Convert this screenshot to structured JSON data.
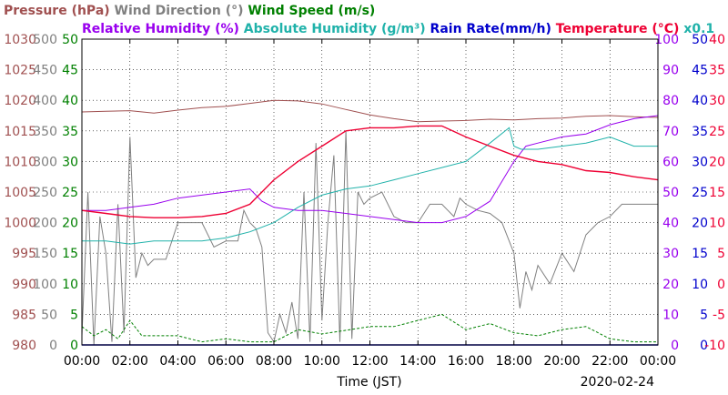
{
  "chart_data": {
    "type": "line",
    "date_label": "2020-02-24",
    "xlabel": "Time (JST)",
    "x_ticks": [
      "00:00",
      "02:00",
      "04:00",
      "06:00",
      "08:00",
      "10:00",
      "12:00",
      "14:00",
      "16:00",
      "18:00",
      "20:00",
      "22:00",
      "00:00"
    ],
    "x_range_hours": [
      0,
      24
    ],
    "grid": true,
    "legend_row1": [
      {
        "text": "Pressure (hPa)",
        "color": "#A05050"
      },
      {
        "text": "Wind Direction (°)",
        "color": "#808080"
      },
      {
        "text": "Wind Speed (m/s)",
        "color": "#008000"
      }
    ],
    "legend_row2": [
      {
        "text": "Relative Humidity (%)",
        "color": "#9900EE"
      },
      {
        "text": "Absolute Humidity (g/m³)",
        "color": "#20B2AA"
      },
      {
        "text": "Rain Rate(mm/h)",
        "color": "#0000CC"
      },
      {
        "text": "Temperature (°C)",
        "color": "#EE0033"
      },
      {
        "text": "x0.1",
        "color": "#20B2AA"
      }
    ],
    "axes": {
      "pressure": {
        "color": "#A05050",
        "min": 980,
        "max": 1030,
        "ticks": [
          980,
          985,
          990,
          995,
          1000,
          1005,
          1010,
          1015,
          1020,
          1025,
          1030
        ]
      },
      "wind_direction": {
        "color": "#808080",
        "min": 0,
        "max": 500,
        "ticks": [
          0,
          50,
          100,
          150,
          200,
          250,
          300,
          350,
          400,
          450,
          500
        ]
      },
      "wind_speed": {
        "color": "#008000",
        "min": 0,
        "max": 50,
        "ticks": [
          0,
          5,
          10,
          15,
          20,
          25,
          30,
          35,
          40,
          45,
          50
        ]
      },
      "humidity": {
        "color": "#9900EE",
        "min": 0,
        "max": 100,
        "ticks": [
          0,
          10,
          20,
          30,
          40,
          50,
          60,
          70,
          80,
          90,
          100
        ]
      },
      "rain_rate": {
        "color": "#0000CC",
        "min": 0,
        "max": 50,
        "ticks": [
          0,
          5,
          10,
          15,
          20,
          25,
          30,
          35,
          40,
          45,
          50
        ]
      },
      "temperature": {
        "color": "#EE0033",
        "min": -10,
        "max": 40,
        "ticks": [
          -10,
          -5,
          0,
          5,
          10,
          15,
          20,
          25,
          30,
          35,
          40
        ]
      }
    },
    "series": [
      {
        "name": "Pressure (hPa)",
        "axis": "pressure",
        "color": "#A05050",
        "x": [
          0,
          1,
          2,
          3,
          4,
          5,
          6,
          7,
          8,
          9,
          10,
          11,
          12,
          13,
          14,
          15,
          16,
          17,
          18,
          19,
          20,
          21,
          22,
          23,
          24
        ],
        "y": [
          1018.1,
          1018.2,
          1018.3,
          1017.9,
          1018.4,
          1018.8,
          1019.0,
          1019.5,
          1020.0,
          1019.9,
          1019.4,
          1018.5,
          1017.6,
          1017.0,
          1016.5,
          1016.6,
          1016.7,
          1016.9,
          1016.8,
          1017.0,
          1017.1,
          1017.4,
          1017.5,
          1017.3,
          1017.2
        ]
      },
      {
        "name": "Wind Direction (°)",
        "axis": "wind_direction",
        "color": "#808080",
        "x": [
          0,
          0.25,
          0.5,
          0.75,
          1,
          1.25,
          1.5,
          1.75,
          2,
          2.25,
          2.5,
          2.75,
          3,
          3.5,
          4,
          4.5,
          5,
          5.5,
          6,
          6.5,
          6.75,
          7,
          7.25,
          7.5,
          7.75,
          8,
          8.25,
          8.5,
          8.75,
          9,
          9.25,
          9.5,
          9.75,
          10,
          10.25,
          10.5,
          10.75,
          11,
          11.25,
          11.5,
          11.75,
          12,
          12.5,
          13,
          13.5,
          14,
          14.5,
          15,
          15.25,
          15.5,
          15.75,
          16,
          16.5,
          17,
          17.5,
          18,
          18.25,
          18.5,
          18.75,
          19,
          19.5,
          20,
          20.5,
          21,
          21.5,
          22,
          22.5,
          23,
          23.5,
          24
        ],
        "y": [
          15,
          250,
          0,
          210,
          150,
          5,
          230,
          20,
          340,
          110,
          150,
          130,
          140,
          140,
          200,
          200,
          200,
          160,
          170,
          170,
          220,
          200,
          190,
          160,
          20,
          5,
          50,
          20,
          70,
          10,
          250,
          5,
          330,
          40,
          200,
          310,
          5,
          350,
          10,
          250,
          230,
          240,
          250,
          210,
          200,
          200,
          230,
          230,
          220,
          210,
          240,
          230,
          220,
          215,
          200,
          150,
          60,
          120,
          90,
          130,
          100,
          150,
          120,
          180,
          200,
          210,
          230,
          230,
          230,
          230
        ]
      },
      {
        "name": "Wind Speed (m/s)",
        "axis": "wind_speed",
        "color": "#008000",
        "x": [
          0,
          0.5,
          1,
          1.5,
          2,
          2.5,
          3,
          4,
          5,
          6,
          7,
          8,
          9,
          10,
          11,
          12,
          13,
          14,
          15,
          16,
          17,
          18,
          19,
          20,
          21,
          22,
          23,
          24
        ],
        "y": [
          3,
          1.5,
          2.5,
          1,
          4,
          1.5,
          1.5,
          1.5,
          0.5,
          1,
          0.5,
          0.5,
          2.5,
          1.8,
          2.4,
          3,
          3,
          4,
          5,
          2.5,
          3.5,
          2,
          1.5,
          2.5,
          3,
          1,
          0.5,
          0.5
        ]
      },
      {
        "name": "Relative Humidity (%)",
        "axis": "humidity",
        "color": "#9900EE",
        "x": [
          0,
          1,
          2,
          3,
          4,
          5,
          6,
          7,
          7.5,
          8,
          9,
          10,
          11,
          12,
          13,
          14,
          15,
          16,
          17,
          18,
          18.5,
          19,
          20,
          21,
          22,
          23,
          24
        ],
        "y": [
          44,
          44,
          45,
          46,
          48,
          49,
          50,
          51,
          47,
          45,
          44,
          44,
          43,
          42,
          41,
          40,
          40,
          42,
          47,
          60,
          65,
          66,
          68,
          69,
          72,
          74,
          75
        ]
      },
      {
        "name": "Absolute Humidity (g/m³)",
        "axis": "humidity",
        "color": "#20B2AA",
        "x": [
          0,
          1,
          2,
          3,
          4,
          5,
          6,
          7,
          8,
          9,
          10,
          11,
          12,
          13,
          14,
          15,
          16,
          17,
          17.8,
          18,
          18.3,
          19,
          20,
          21,
          22,
          23,
          24
        ],
        "y": [
          34,
          34,
          33,
          34,
          34,
          34,
          35,
          37,
          40,
          45,
          49,
          51,
          52,
          54,
          56,
          58,
          60,
          66,
          71,
          65,
          64,
          64,
          65,
          66,
          68,
          65,
          65
        ]
      },
      {
        "name": "Rain Rate(mm/h)",
        "axis": "rain_rate",
        "color": "#0000CC",
        "x": [
          0,
          24
        ],
        "y": [
          0,
          0
        ]
      },
      {
        "name": "Temperature (°C)",
        "axis": "temperature",
        "color": "#EE0033",
        "x": [
          0,
          1,
          2,
          3,
          4,
          5,
          6,
          7,
          8,
          9,
          10,
          11,
          12,
          13,
          14,
          15,
          16,
          17,
          18,
          19,
          20,
          21,
          22,
          23,
          24
        ],
        "y": [
          12,
          11.5,
          11,
          10.8,
          10.8,
          11,
          11.5,
          13,
          17,
          20,
          22.5,
          25,
          25.5,
          25.5,
          25.8,
          25.8,
          24,
          22.5,
          21,
          20,
          19.5,
          18.5,
          18.2,
          17.5,
          17
        ]
      }
    ]
  }
}
